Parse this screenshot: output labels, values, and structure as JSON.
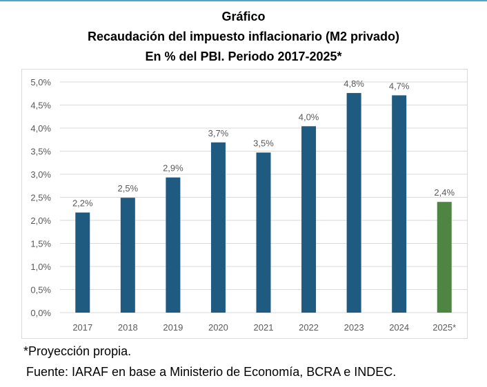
{
  "header": {
    "title": "Gráfico",
    "subtitle": "Recaudación del impuesto inflacionario (M2 privado)",
    "subtitle2": "En % del PBI. Periodo 2017-2025*"
  },
  "footer": {
    "note": "*Proyección propia.",
    "source": "Fuente: IARAF en base a Ministerio de Economía, BCRA e INDEC."
  },
  "colors": {
    "top_rule": "#4ea6c8",
    "bar": "#1f5a80",
    "bar_projection": "#4e8543",
    "gridline": "#d9d9d9",
    "axis_text": "#595959"
  },
  "chart_data": {
    "type": "bar",
    "categories": [
      "2017",
      "2018",
      "2019",
      "2020",
      "2021",
      "2022",
      "2023",
      "2024",
      "2025*"
    ],
    "values": [
      2.17,
      2.49,
      2.93,
      3.69,
      3.47,
      4.04,
      4.76,
      4.71,
      2.4
    ],
    "data_labels": [
      "2,2%",
      "2,5%",
      "2,9%",
      "3,7%",
      "3,5%",
      "4,0%",
      "4,8%",
      "4,7%",
      "2,4%"
    ],
    "projection_index": 8,
    "ylim": [
      0,
      5
    ],
    "yticks": [
      0,
      0.5,
      1,
      1.5,
      2,
      2.5,
      3,
      3.5,
      4,
      4.5,
      5
    ],
    "ytick_labels": [
      "0,0%",
      "0,5%",
      "1,0%",
      "1,5%",
      "2,0%",
      "2,5%",
      "3,0%",
      "3,5%",
      "4,0%",
      "4,5%",
      "5,0%"
    ],
    "grid": true,
    "legend": "none"
  }
}
